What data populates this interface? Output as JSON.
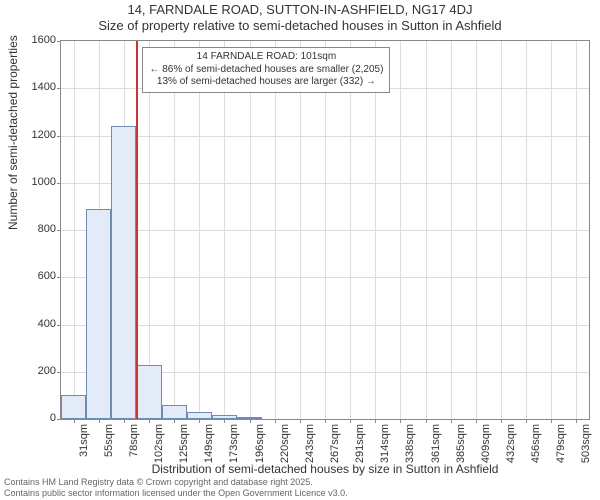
{
  "chart": {
    "type": "histogram",
    "title_main": "14, FARNDALE ROAD, SUTTON-IN-ASHFIELD, NG17 4DJ",
    "title_sub": "Size of property relative to semi-detached houses in Sutton in Ashfield",
    "y_axis_title": "Number of semi-detached properties",
    "x_axis_title": "Distribution of semi-detached houses by size in Sutton in Ashfield",
    "background_color": "#ffffff",
    "grid_color": "#dddddd",
    "axis_color": "#888888",
    "bar_fill": "#e3ebf8",
    "bar_border": "#6e8bb5",
    "marker_color": "#cc3333",
    "title_fontsize": 13,
    "axis_title_fontsize": 12,
    "tick_fontsize": 11,
    "annotation_fontsize": 10,
    "ylim": [
      0,
      1600
    ],
    "ytick_step": 200,
    "yticks": [
      0,
      200,
      400,
      600,
      800,
      1000,
      1200,
      1400,
      1600
    ],
    "x_labels": [
      "31sqm",
      "55sqm",
      "78sqm",
      "102sqm",
      "125sqm",
      "149sqm",
      "173sqm",
      "196sqm",
      "220sqm",
      "243sqm",
      "267sqm",
      "291sqm",
      "314sqm",
      "338sqm",
      "361sqm",
      "385sqm",
      "409sqm",
      "432sqm",
      "456sqm",
      "479sqm",
      "503sqm"
    ],
    "bars": [
      100,
      890,
      1240,
      230,
      60,
      30,
      15,
      10,
      0,
      0,
      0,
      0,
      0,
      0,
      0,
      0,
      0,
      0,
      0,
      0,
      0
    ],
    "marker_bin_index": 3,
    "annotation": {
      "line1": "14 FARNDALE ROAD: 101sqm",
      "line2": "← 86% of semi-detached houses are smaller (2,205)",
      "line3": "13% of semi-detached houses are larger (332) →"
    },
    "footer": {
      "line1": "Contains HM Land Registry data © Crown copyright and database right 2025.",
      "line2": "Contains public sector information licensed under the Open Government Licence v3.0."
    }
  }
}
